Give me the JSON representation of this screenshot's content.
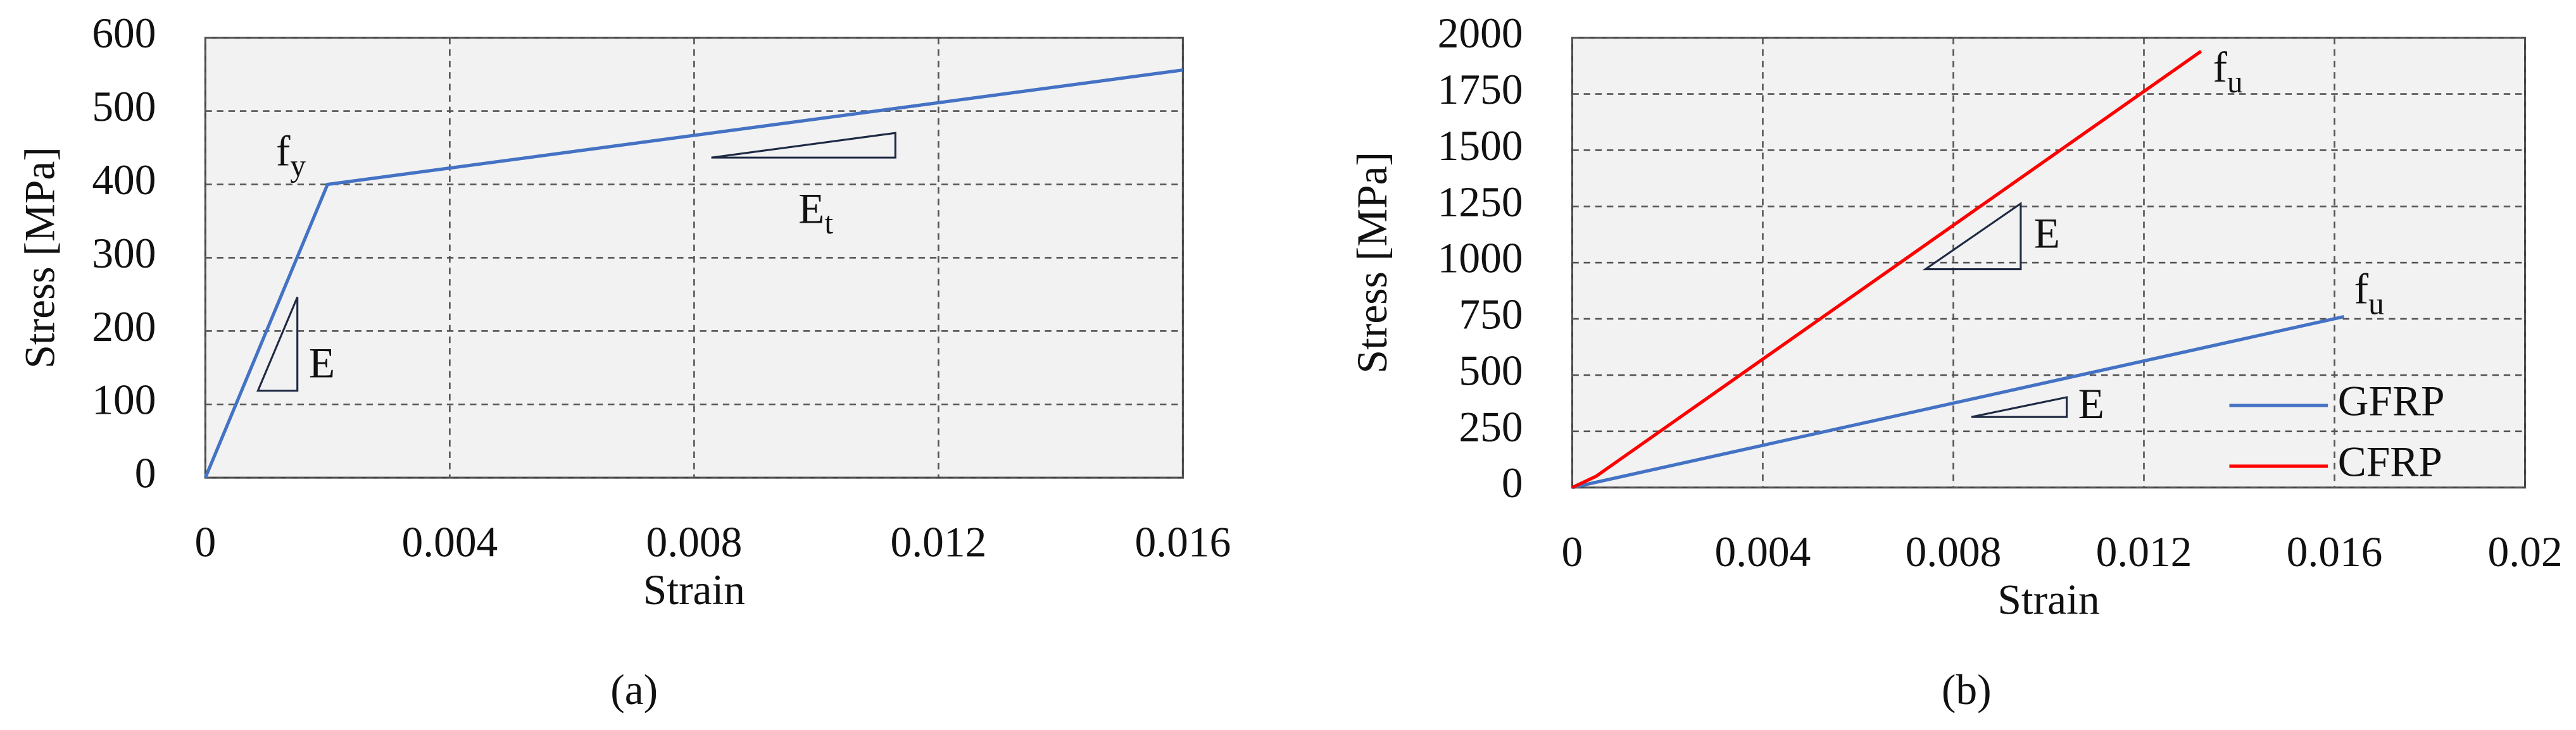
{
  "chart_data": [
    {
      "type": "line",
      "x_label": "Strain",
      "y_label": "Stress [MPa]",
      "caption": "(a)",
      "series": [
        {
          "color": "#4472c4",
          "x": [
            0,
            0.002,
            0.016
          ],
          "values": [
            0,
            400,
            556
          ]
        }
      ],
      "xlim": [
        0,
        0.016
      ],
      "xticks": [
        0,
        0.004,
        0.008,
        0.012,
        0.016
      ],
      "ylim": [
        0,
        600
      ],
      "yticks": [
        0,
        100,
        200,
        300,
        400,
        500,
        600
      ],
      "grid": true,
      "annotations": [
        {
          "text": "f",
          "subscript": "y"
        },
        {
          "text": "E"
        },
        {
          "text": "E",
          "subscript": "t"
        }
      ]
    },
    {
      "type": "line",
      "x_label": "Strain",
      "y_label": "Stress [MPa]",
      "caption": "(b)",
      "series": [
        {
          "name": "GFRP",
          "color": "#4472c4",
          "x": [
            0,
            0.0162
          ],
          "values": [
            0,
            760
          ]
        },
        {
          "name": "CFRP",
          "color": "#ff0000",
          "x": [
            0,
            0.0005,
            0.0132
          ],
          "values": [
            0,
            50,
            1940
          ]
        }
      ],
      "xlim": [
        0,
        0.02
      ],
      "xticks": [
        0,
        0.004,
        0.008,
        0.012,
        0.016,
        0.02
      ],
      "ylim": [
        0,
        2000
      ],
      "yticks": [
        0,
        250,
        500,
        750,
        1000,
        1250,
        1500,
        1750,
        2000
      ],
      "grid": true,
      "legend": "lower right",
      "annotations": [
        {
          "text": "f",
          "subscript": "u"
        },
        {
          "text": "f",
          "subscript": "u"
        },
        {
          "text": "E"
        },
        {
          "text": "E"
        }
      ]
    }
  ]
}
